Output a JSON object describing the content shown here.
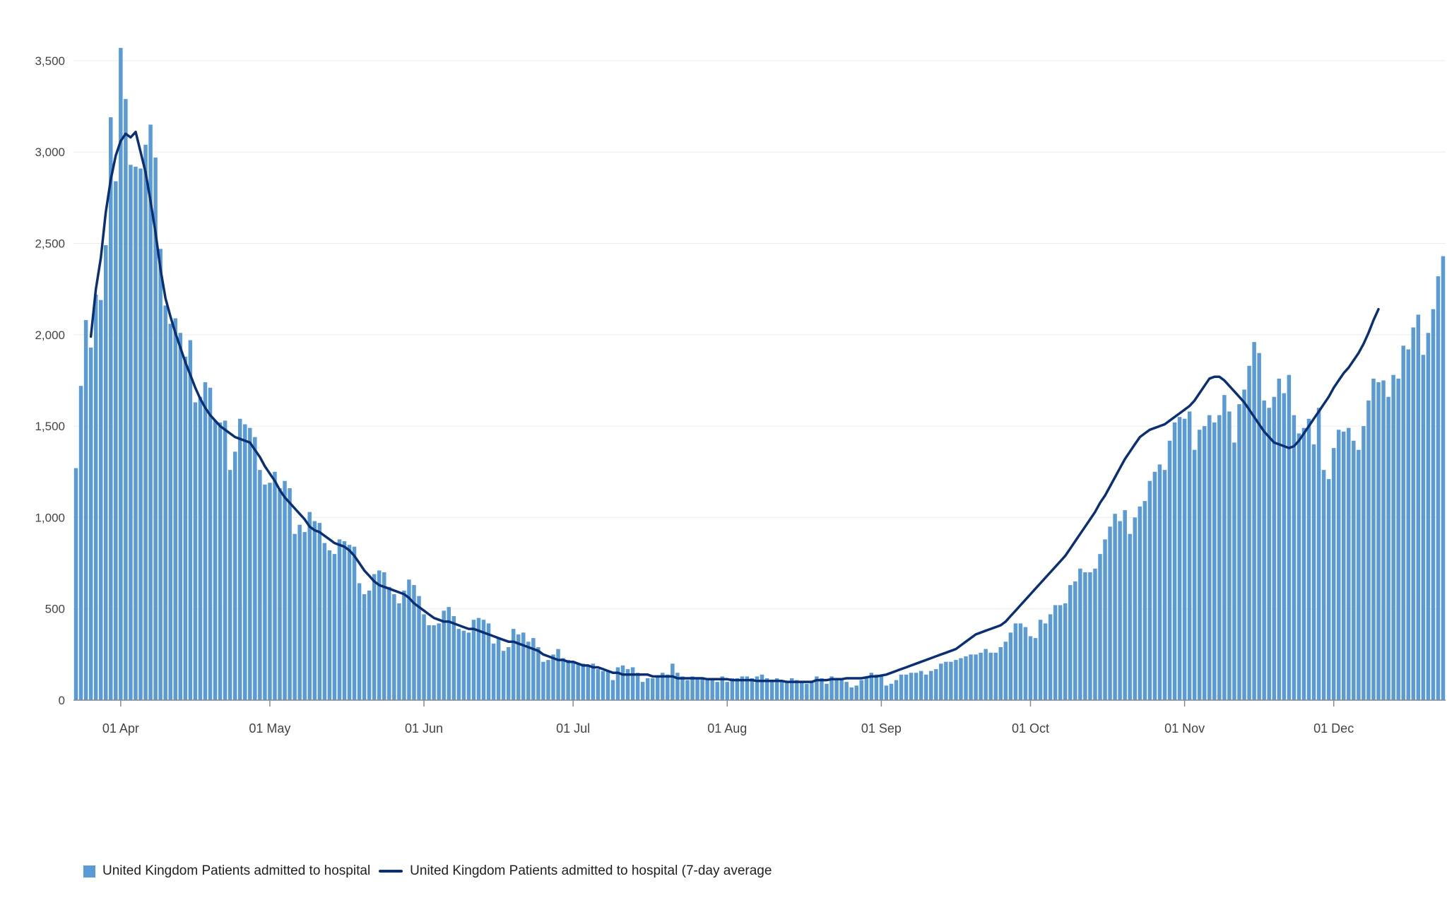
{
  "chart_data": {
    "type": "bar",
    "title": "",
    "xlabel": "",
    "ylabel": "",
    "ylim": [
      0,
      3600
    ],
    "yticks": [
      0,
      500,
      1000,
      1500,
      2000,
      2500,
      3000,
      3500
    ],
    "ytick_labels": [
      "0",
      "500",
      "1,000",
      "1,500",
      "2,000",
      "2,500",
      "3,000",
      "3,500"
    ],
    "x_start": "2020-03-23",
    "x_end": "2020-12-20",
    "xticks": [
      {
        "date": "2020-04-01",
        "label": "01 Apr"
      },
      {
        "date": "2020-05-01",
        "label": "01 May"
      },
      {
        "date": "2020-06-01",
        "label": "01 Jun"
      },
      {
        "date": "2020-07-01",
        "label": "01 Jul"
      },
      {
        "date": "2020-08-01",
        "label": "01 Aug"
      },
      {
        "date": "2020-09-01",
        "label": "01 Sep"
      },
      {
        "date": "2020-10-01",
        "label": "01 Oct"
      },
      {
        "date": "2020-11-01",
        "label": "01 Nov"
      },
      {
        "date": "2020-12-01",
        "label": "01 Dec"
      }
    ],
    "grid": true,
    "legend_position": "bottom-left",
    "series": [
      {
        "name": "United Kingdom Patients admitted to hospital",
        "type": "bar",
        "color": "#5b9bd5",
        "values": [
          1270,
          1720,
          2080,
          1930,
          2220,
          2190,
          2490,
          3190,
          2840,
          3570,
          3290,
          2930,
          2920,
          2910,
          3040,
          3150,
          2970,
          2470,
          2160,
          2060,
          2090,
          2010,
          1880,
          1970,
          1630,
          1660,
          1740,
          1710,
          1530,
          1520,
          1530,
          1260,
          1360,
          1540,
          1510,
          1490,
          1440,
          1260,
          1180,
          1190,
          1250,
          1160,
          1200,
          1160,
          910,
          960,
          920,
          1030,
          980,
          970,
          860,
          820,
          800,
          880,
          870,
          850,
          840,
          640,
          580,
          600,
          690,
          710,
          700,
          620,
          580,
          530,
          600,
          660,
          630,
          570,
          470,
          410,
          410,
          420,
          490,
          510,
          460,
          390,
          380,
          370,
          440,
          450,
          440,
          420,
          310,
          340,
          270,
          290,
          390,
          360,
          370,
          320,
          340,
          290,
          210,
          220,
          250,
          280,
          230,
          220,
          210,
          200,
          200,
          190,
          200,
          170,
          160,
          160,
          110,
          180,
          190,
          170,
          180,
          150,
          100,
          120,
          120,
          130,
          150,
          140,
          200,
          150,
          130,
          110,
          130,
          120,
          120,
          110,
          120,
          100,
          130,
          100,
          120,
          120,
          130,
          130,
          120,
          130,
          140,
          120,
          100,
          120,
          110,
          100,
          120,
          110,
          100,
          90,
          100,
          130,
          120,
          90,
          130,
          110,
          110,
          100,
          70,
          80,
          110,
          130,
          150,
          140,
          130,
          80,
          90,
          110,
          140,
          140,
          150,
          150,
          160,
          140,
          160,
          170,
          200,
          210,
          210,
          220,
          230,
          240,
          250,
          250,
          260,
          280,
          260,
          260,
          290,
          320,
          370,
          420,
          420,
          400,
          350,
          340,
          440,
          420,
          470,
          520,
          520,
          530,
          630,
          650,
          720,
          700,
          700,
          720,
          800,
          880,
          950,
          1020,
          980,
          1040,
          910,
          1000,
          1060,
          1090,
          1200,
          1250,
          1290,
          1260,
          1420,
          1520,
          1550,
          1540,
          1580,
          1370,
          1480,
          1500,
          1560,
          1520,
          1560,
          1670,
          1580,
          1410,
          1620,
          1700,
          1830,
          1960,
          1900,
          1640,
          1600,
          1660,
          1760,
          1680,
          1780,
          1560,
          1460,
          1490,
          1540,
          1400,
          1600,
          1260,
          1210,
          1380,
          1480,
          1470,
          1490,
          1420,
          1370,
          1500,
          1640,
          1760,
          1740,
          1750,
          1660,
          1780,
          1760,
          1940,
          1920,
          2040,
          2110,
          1890,
          2010,
          2140,
          2320,
          2430
        ]
      },
      {
        "name": "United Kingdom Patients admitted to hospital (7-day average",
        "type": "line",
        "color": "#0b2f73",
        "start_date": "2020-03-26",
        "values": [
          1990,
          2250,
          2420,
          2670,
          2850,
          2980,
          3060,
          3100,
          3080,
          3110,
          3000,
          2890,
          2730,
          2560,
          2360,
          2200,
          2100,
          2010,
          1930,
          1850,
          1780,
          1710,
          1650,
          1600,
          1560,
          1530,
          1500,
          1480,
          1460,
          1440,
          1430,
          1420,
          1410,
          1370,
          1330,
          1280,
          1240,
          1200,
          1150,
          1110,
          1080,
          1050,
          1020,
          990,
          950,
          930,
          920,
          900,
          880,
          860,
          850,
          840,
          820,
          790,
          750,
          710,
          680,
          650,
          630,
          620,
          610,
          600,
          590,
          580,
          560,
          530,
          510,
          490,
          470,
          450,
          440,
          430,
          430,
          420,
          410,
          400,
          390,
          390,
          380,
          370,
          360,
          350,
          340,
          330,
          320,
          320,
          310,
          300,
          290,
          280,
          270,
          250,
          240,
          230,
          220,
          220,
          210,
          210,
          200,
          190,
          190,
          180,
          180,
          170,
          160,
          150,
          150,
          140,
          140,
          140,
          140,
          140,
          140,
          130,
          130,
          130,
          130,
          130,
          120,
          120,
          120,
          120,
          120,
          120,
          115,
          115,
          115,
          115,
          115,
          110,
          110,
          110,
          110,
          110,
          105,
          105,
          105,
          105,
          105,
          105,
          100,
          100,
          100,
          100,
          100,
          100,
          110,
          110,
          110,
          115,
          115,
          115,
          120,
          120,
          120,
          120,
          125,
          130,
          130,
          135,
          140,
          150,
          160,
          170,
          180,
          190,
          200,
          210,
          220,
          230,
          240,
          250,
          260,
          270,
          280,
          300,
          320,
          340,
          360,
          370,
          380,
          390,
          400,
          410,
          430,
          460,
          490,
          520,
          550,
          580,
          610,
          640,
          670,
          700,
          730,
          760,
          790,
          830,
          870,
          910,
          950,
          990,
          1030,
          1080,
          1120,
          1170,
          1220,
          1270,
          1320,
          1360,
          1400,
          1440,
          1460,
          1480,
          1490,
          1500,
          1510,
          1530,
          1550,
          1570,
          1590,
          1610,
          1640,
          1680,
          1720,
          1760,
          1770,
          1770,
          1750,
          1720,
          1690,
          1660,
          1630,
          1590,
          1550,
          1510,
          1470,
          1440,
          1410,
          1400,
          1390,
          1380,
          1390,
          1420,
          1460,
          1500,
          1540,
          1580,
          1620,
          1660,
          1710,
          1750,
          1790,
          1820,
          1860,
          1900,
          1950,
          2010,
          2080,
          2140
        ]
      }
    ]
  },
  "legend": {
    "bar_label": "United Kingdom Patients admitted to hospital",
    "line_label": "United Kingdom Patients admitted to hospital (7-day average"
  }
}
